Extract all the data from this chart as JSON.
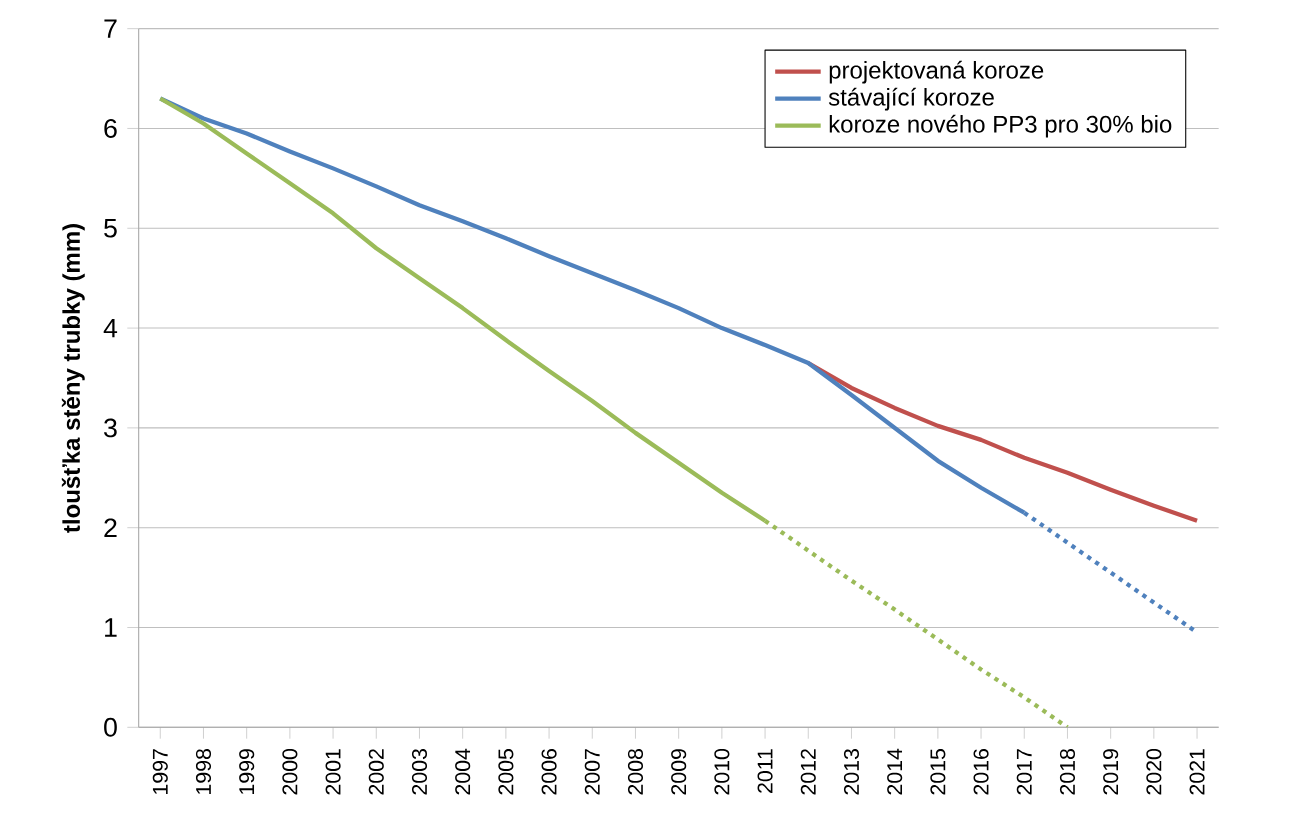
{
  "chart_data": {
    "type": "line",
    "ylabel": "tloušťka stěny trubky (mm)",
    "categories": [
      "1997",
      "1998",
      "1999",
      "2000",
      "2001",
      "2002",
      "2003",
      "2004",
      "2005",
      "2006",
      "2007",
      "2008",
      "2009",
      "2010",
      "2011",
      "2012",
      "2013",
      "2014",
      "2015",
      "2016",
      "2017",
      "2018",
      "2019",
      "2020",
      "2021"
    ],
    "series": [
      {
        "name": "projektovaná koroze",
        "color": "#c0504d",
        "line_style": "solid",
        "values": [
          null,
          null,
          null,
          null,
          null,
          null,
          null,
          null,
          null,
          null,
          null,
          null,
          null,
          null,
          null,
          3.65,
          3.4,
          3.2,
          3.02,
          2.88,
          2.7,
          2.55,
          2.38,
          2.22,
          2.07
        ]
      },
      {
        "name": "stávající koroze",
        "color": "#4f81bd",
        "line_style": "solid",
        "values": [
          6.3,
          6.1,
          5.95,
          5.77,
          5.6,
          5.42,
          5.23,
          5.07,
          4.9,
          4.72,
          4.55,
          4.38,
          4.2,
          4.0,
          3.83,
          3.65,
          3.33,
          3.0,
          2.67,
          2.4,
          2.15,
          null,
          null,
          null,
          null
        ]
      },
      {
        "name": "koroze nového PP3 pro 30% bio",
        "color": "#9bbb59",
        "line_style": "solid",
        "values": [
          6.3,
          6.05,
          5.75,
          5.45,
          5.15,
          4.8,
          4.5,
          4.2,
          3.88,
          3.57,
          3.27,
          2.95,
          2.65,
          2.35,
          2.07,
          null,
          null,
          null,
          null,
          null,
          null,
          null,
          null,
          null,
          null
        ]
      },
      {
        "color": "#4f81bd",
        "line_style": "dotted",
        "values": [
          null,
          null,
          null,
          null,
          null,
          null,
          null,
          null,
          null,
          null,
          null,
          null,
          null,
          null,
          null,
          null,
          null,
          null,
          null,
          null,
          2.15,
          1.85,
          1.55,
          1.25,
          0.95
        ]
      },
      {
        "color": "#9bbb59",
        "line_style": "dotted",
        "values": [
          null,
          null,
          null,
          null,
          null,
          null,
          null,
          null,
          null,
          null,
          null,
          null,
          null,
          null,
          2.07,
          1.77,
          1.47,
          1.18,
          0.88,
          0.58,
          0.3,
          0,
          null,
          null,
          null
        ]
      }
    ],
    "ylim": [
      0,
      7
    ],
    "yticks": [
      0,
      1,
      2,
      3,
      4,
      5,
      6,
      7
    ],
    "grid": "y",
    "legend": "top right",
    "marker": "none"
  }
}
